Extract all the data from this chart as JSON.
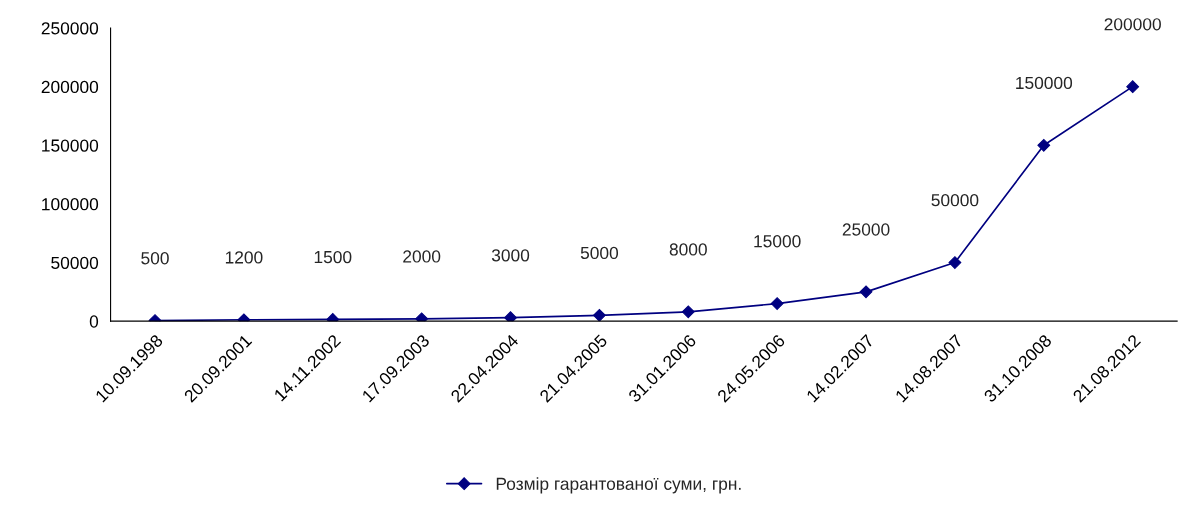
{
  "chart_data": {
    "type": "line",
    "categories": [
      "10.09.1998",
      "20.09.2001",
      "14.11.2002",
      "17.09.2003",
      "22.04.2004",
      "21.04.2005",
      "31.01.2006",
      "24.05.2006",
      "14.02.2007",
      "14.08.2007",
      "31.10.2008",
      "21.08.2012"
    ],
    "series": [
      {
        "name": "Розмір гарантованої суми, грн.",
        "color": "#000080",
        "values": [
          500,
          1200,
          1500,
          2000,
          3000,
          5000,
          8000,
          15000,
          25000,
          50000,
          150000,
          200000
        ]
      }
    ],
    "ylim": [
      0,
      250000
    ],
    "yticks": [
      0,
      50000,
      100000,
      150000,
      200000,
      250000
    ],
    "data_labels": true,
    "marker": "diamond",
    "line_style": "solid",
    "legend": "bottom",
    "grid": false
  }
}
